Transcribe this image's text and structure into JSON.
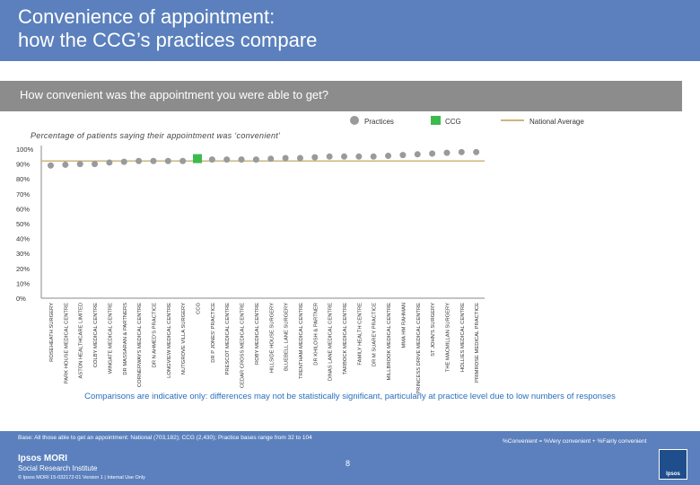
{
  "title_line1": "Convenience of appointment:",
  "title_line2": "how the CCG’s practices compare",
  "question": "How convenient was the appointment you were able to get?",
  "legend": {
    "practices": "Practices",
    "ccg": "CCG",
    "national": "National Average"
  },
  "note": "Comparisons are indicative only: differences may not be statistically significant, particularly at practice level due to low numbers of responses",
  "footer": {
    "base": "Base: All those able to get an appointment: National (703,182); CCG (2,430); Practice bases range from 32 to 104",
    "definition": "%Convenient = %Very convenient + %Fairly convenient",
    "page": "8",
    "logo_line1": "Ipsos MORI",
    "logo_line2": "Social Research Institute",
    "copyright": "© Ipsos MORI    15-032172-01 Version 1 | Internal Use Only",
    "logo_badge": "Ipsos"
  },
  "colors": {
    "header": "#5b80bd",
    "practice": "#9a9a9a",
    "ccg": "#3dba4e",
    "national": "#c9b67d",
    "note": "#2a6ebb"
  },
  "chart_data": {
    "type": "scatter",
    "title": "Percentage of patients saying their appointment was ‘convenient’",
    "y_ticks": [
      "0%",
      "10%",
      "20%",
      "30%",
      "40%",
      "50%",
      "60%",
      "70%",
      "80%",
      "90%",
      "100%"
    ],
    "ylim": [
      0,
      100
    ],
    "national_average": 92,
    "categories": [
      "ROSEHEATH SURGERY",
      "PARK HOUSE MEDICAL CENTRE",
      "ASTON HEALTHCARE LIMITED",
      "COLBY MEDICAL CENTRE",
      "WINGATE MEDICAL CENTRE",
      "DR MASSARAN & PARTNERS",
      "CORNERWAYS MEDICAL CENTRE",
      "DR N AHMED'S PRACTICE",
      "LONGVIEW MEDICAL CENTRE",
      "NUTGROVE VILLA SURGERY",
      "CCG",
      "DR P JONES' PRACTICE",
      "PRESCOT MEDICAL CENTRE",
      "CEDAR CROSS MEDICAL CENTRE",
      "ROBY MEDICAL CENTRE",
      "HILLSIDE HOUSE SURGERY",
      "BLUEBELL LANE SURGERY",
      "TRENTHAM MEDICAL CENTRE",
      "DR KHILOSH & PARTNER",
      "DINAS LANE MEDICAL CENTRE",
      "TARBOCK MEDICAL CENTRE",
      "FAMILY HEALTH CENTRE",
      "DR M SUAREY PRACTICE",
      "MILLBROOK MEDICAL CENTRE",
      "MMA HM RAHMAN",
      "PRINCESS DRIVE MEDICAL CENTRE",
      "ST JOHN'S SURGERY",
      "THE MACMILLAN SURGERY",
      "HOLLIES MEDICAL CENTRE",
      "PRIMROSE MEDICAL PRACTICE"
    ],
    "values": [
      89,
      89.5,
      90,
      90,
      91,
      91.5,
      92,
      92,
      92,
      92,
      93,
      93,
      93,
      93,
      93,
      93.5,
      94,
      94,
      94.5,
      95,
      95,
      95,
      95,
      95.5,
      96,
      96.5,
      97,
      97.5,
      98,
      98
    ],
    "ccg_index": 10
  }
}
